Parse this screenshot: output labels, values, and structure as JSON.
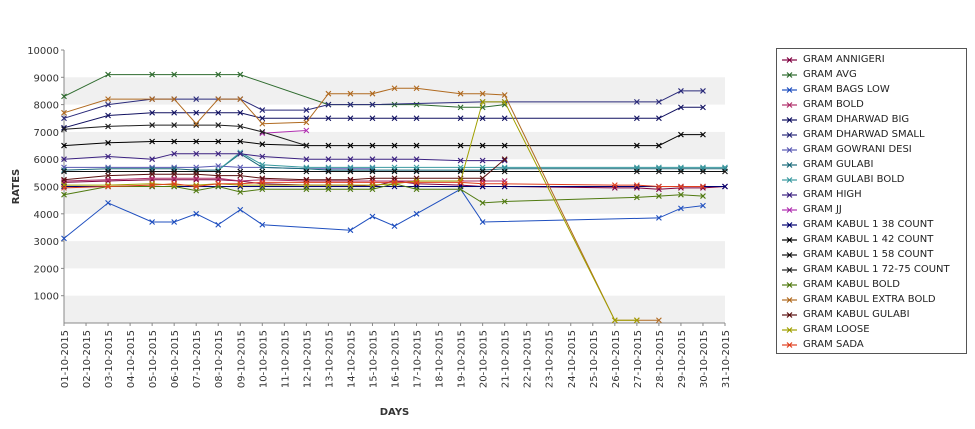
{
  "chart_data": {
    "type": "line",
    "xlabel": "DAYS",
    "ylabel": "RATES",
    "ylim": [
      0,
      10000
    ],
    "y_ticks": [
      1000,
      2000,
      3000,
      4000,
      5000,
      6000,
      7000,
      8000,
      9000,
      10000
    ],
    "categories": [
      "01-10-2015",
      "02-10-2015",
      "03-10-2015",
      "04-10-2015",
      "05-10-2015",
      "06-10-2015",
      "07-10-2015",
      "08-10-2015",
      "09-10-2015",
      "10-10-2015",
      "11-10-2015",
      "12-10-2015",
      "13-10-2015",
      "14-10-2015",
      "15-10-2015",
      "16-10-2015",
      "17-10-2015",
      "18-10-2015",
      "19-10-2015",
      "20-10-2015",
      "21-10-2015",
      "22-10-2015",
      "23-10-2015",
      "24-10-2015",
      "25-10-2015",
      "26-10-2015",
      "27-10-2015",
      "28-10-2015",
      "29-10-2015",
      "30-10-2015",
      "31-10-2015"
    ],
    "grid": "horizontal bands",
    "legend_position": "right",
    "series": [
      {
        "name": "GRAM ANNIGERI",
        "color": "#800040",
        "values": [
          5150,
          null,
          5200,
          null,
          5250,
          5250,
          5250,
          5250,
          5200,
          5100,
          null,
          5050,
          5050,
          5050,
          5000,
          5200,
          5100,
          null,
          5050,
          5000,
          5000,
          null,
          null,
          null,
          null,
          4950,
          4950,
          4900,
          4950,
          4950,
          5000
        ]
      },
      {
        "name": "GRAM AVG",
        "color": "#2e6b2e",
        "values": [
          8300,
          null,
          9100,
          null,
          9100,
          9100,
          null,
          9100,
          9100,
          null,
          null,
          null,
          8000,
          8000,
          8000,
          8000,
          8000,
          null,
          7900,
          7900,
          8000,
          null,
          null,
          null,
          null,
          null,
          null,
          null,
          null,
          null,
          null
        ]
      },
      {
        "name": "GRAM BAGS LOW",
        "color": "#1f4fbf",
        "values": [
          3100,
          null,
          4400,
          null,
          3700,
          3700,
          4000,
          3600,
          4150,
          3600,
          null,
          null,
          null,
          3400,
          3900,
          3550,
          4000,
          null,
          4900,
          3700,
          null,
          null,
          null,
          null,
          null,
          null,
          null,
          3850,
          4200,
          4300,
          null
        ]
      },
      {
        "name": "GRAM BOLD",
        "color": "#b0306b",
        "values": [
          5200,
          null,
          5250,
          null,
          5300,
          5300,
          5300,
          5300,
          5200,
          5250,
          null,
          5200,
          5200,
          5200,
          5200,
          5200,
          5200,
          null,
          5200,
          5200,
          5200,
          null,
          null,
          null,
          null,
          null,
          null,
          null,
          null,
          null,
          null
        ]
      },
      {
        "name": "GRAM DHARWAD BIG",
        "color": "#101060",
        "values": [
          7150,
          null,
          7600,
          null,
          7700,
          7700,
          7700,
          7700,
          7700,
          7500,
          null,
          7500,
          7500,
          7500,
          7500,
          7500,
          7500,
          null,
          7500,
          7500,
          7500,
          null,
          null,
          null,
          null,
          null,
          7500,
          7500,
          7900,
          7900,
          null
        ]
      },
      {
        "name": "GRAM DHARWAD SMALL",
        "color": "#2a2a7a",
        "values": [
          7500,
          null,
          8000,
          null,
          8200,
          8200,
          8200,
          8200,
          8200,
          7800,
          null,
          7800,
          8000,
          8000,
          8000,
          null,
          null,
          null,
          null,
          8100,
          8100,
          null,
          null,
          null,
          null,
          null,
          8100,
          8100,
          8500,
          8500,
          null
        ]
      },
      {
        "name": "GRAM GOWRANI DESI",
        "color": "#5a5ab4",
        "values": [
          5700,
          null,
          5700,
          null,
          5700,
          5700,
          5700,
          5750,
          5700,
          5700,
          null,
          5650,
          5650,
          5650,
          5650,
          null,
          null,
          null,
          null,
          null,
          null,
          null,
          null,
          null,
          null,
          null,
          null,
          null,
          null,
          null,
          null
        ]
      },
      {
        "name": "GRAM GULABI",
        "color": "#1a6a7a",
        "values": [
          5600,
          null,
          5650,
          null,
          5650,
          5650,
          5600,
          5600,
          6200,
          5700,
          null,
          5650,
          5600,
          5600,
          5600,
          5600,
          5600,
          null,
          5600,
          5600,
          5650,
          null,
          null,
          null,
          null,
          null,
          5650,
          5650,
          5650,
          5650,
          5650
        ]
      },
      {
        "name": "GRAM GULABI BOLD",
        "color": "#3a9aa0",
        "values": [
          null,
          null,
          null,
          null,
          null,
          null,
          null,
          5600,
          6250,
          5800,
          null,
          5700,
          5700,
          5700,
          5700,
          5700,
          5700,
          null,
          5700,
          5700,
          5700,
          null,
          null,
          null,
          null,
          null,
          5700,
          5700,
          5700,
          5700,
          5700
        ]
      },
      {
        "name": "GRAM HIGH",
        "color": "#3a2080",
        "values": [
          6000,
          null,
          6100,
          null,
          6000,
          6200,
          6200,
          6200,
          6200,
          6100,
          null,
          6000,
          6000,
          6000,
          6000,
          6000,
          6000,
          null,
          5950,
          5950,
          5950,
          null,
          null,
          null,
          null,
          null,
          null,
          null,
          null,
          null,
          null
        ]
      },
      {
        "name": "GRAM JJ",
        "color": "#b030b0",
        "values": [
          null,
          null,
          null,
          null,
          null,
          null,
          null,
          null,
          null,
          6950,
          null,
          7050,
          null,
          null,
          null,
          null,
          null,
          null,
          null,
          null,
          null,
          null,
          null,
          null,
          null,
          null,
          null,
          null,
          null,
          null,
          null
        ]
      },
      {
        "name": "GRAM KABUL 1 38 COUNT",
        "color": "#000070",
        "values": [
          5000,
          null,
          5000,
          null,
          5000,
          5000,
          5000,
          5000,
          5000,
          5000,
          null,
          5000,
          5000,
          5000,
          5000,
          5000,
          5000,
          null,
          5000,
          5000,
          5000,
          null,
          null,
          null,
          null,
          null,
          5000,
          5000,
          5000,
          5000,
          5000
        ]
      },
      {
        "name": "GRAM KABUL 1 42 COUNT",
        "color": "#000000",
        "values": [
          6500,
          null,
          6600,
          null,
          6650,
          6650,
          6650,
          6650,
          6650,
          6550,
          null,
          6500,
          6500,
          6500,
          6500,
          6500,
          6500,
          null,
          6500,
          6500,
          6500,
          null,
          null,
          null,
          null,
          null,
          6500,
          6500,
          6900,
          6900,
          null
        ]
      },
      {
        "name": "GRAM KABUL 1 58 COUNT",
        "color": "#101010",
        "values": [
          5550,
          null,
          5550,
          null,
          5550,
          5550,
          5550,
          5550,
          5550,
          5550,
          null,
          5550,
          5550,
          5550,
          5550,
          5550,
          5550,
          null,
          5550,
          5550,
          5550,
          null,
          null,
          null,
          null,
          null,
          5550,
          5550,
          5550,
          5550,
          5550
        ]
      },
      {
        "name": "GRAM KABUL 1 72-75 COUNT",
        "color": "#202020",
        "values": [
          7100,
          null,
          7200,
          null,
          7250,
          7250,
          7250,
          7250,
          7200,
          7000,
          null,
          6500,
          null,
          null,
          null,
          null,
          null,
          null,
          null,
          null,
          null,
          null,
          null,
          null,
          null,
          null,
          null,
          null,
          null,
          null,
          null
        ]
      },
      {
        "name": "GRAM KABUL BOLD",
        "color": "#507a10",
        "values": [
          4700,
          null,
          5000,
          null,
          5000,
          5000,
          4850,
          5000,
          4800,
          4900,
          null,
          4900,
          4900,
          4900,
          4900,
          5100,
          4900,
          null,
          4900,
          4400,
          4450,
          null,
          null,
          null,
          null,
          null,
          4600,
          4650,
          4700,
          4650,
          null
        ]
      },
      {
        "name": "GRAM KABUL EXTRA BOLD",
        "color": "#b06a20",
        "values": [
          7700,
          null,
          8200,
          null,
          8200,
          8200,
          7300,
          8200,
          8200,
          7300,
          null,
          7350,
          8400,
          8400,
          8400,
          8600,
          8600,
          null,
          8400,
          8400,
          8350,
          null,
          null,
          null,
          null,
          100,
          100,
          100,
          null,
          null,
          null
        ]
      },
      {
        "name": "GRAM KABUL GULABI",
        "color": "#5a1010",
        "values": [
          5250,
          null,
          5400,
          null,
          5450,
          5450,
          5450,
          5400,
          5400,
          5300,
          null,
          5250,
          5250,
          5250,
          5300,
          5300,
          5300,
          null,
          5300,
          5300,
          6000,
          null,
          null,
          null,
          null,
          null,
          null,
          null,
          null,
          null,
          null
        ]
      },
      {
        "name": "GRAM LOOSE",
        "color": "#a0a000",
        "values": [
          5050,
          null,
          5050,
          null,
          5100,
          5050,
          5050,
          5100,
          5050,
          5050,
          null,
          5050,
          5050,
          5050,
          5050,
          5100,
          5200,
          null,
          5200,
          8100,
          8100,
          null,
          null,
          null,
          null,
          100,
          100,
          null,
          null,
          null,
          null
        ]
      },
      {
        "name": "GRAM SADA",
        "color": "#e04020",
        "values": [
          4950,
          null,
          5000,
          null,
          5050,
          5100,
          5000,
          5100,
          5100,
          5150,
          null,
          5150,
          5150,
          5150,
          5150,
          5150,
          5150,
          null,
          5150,
          5100,
          5100,
          null,
          null,
          null,
          null,
          5050,
          5050,
          5000,
          5000,
          5000,
          null
        ]
      }
    ]
  }
}
